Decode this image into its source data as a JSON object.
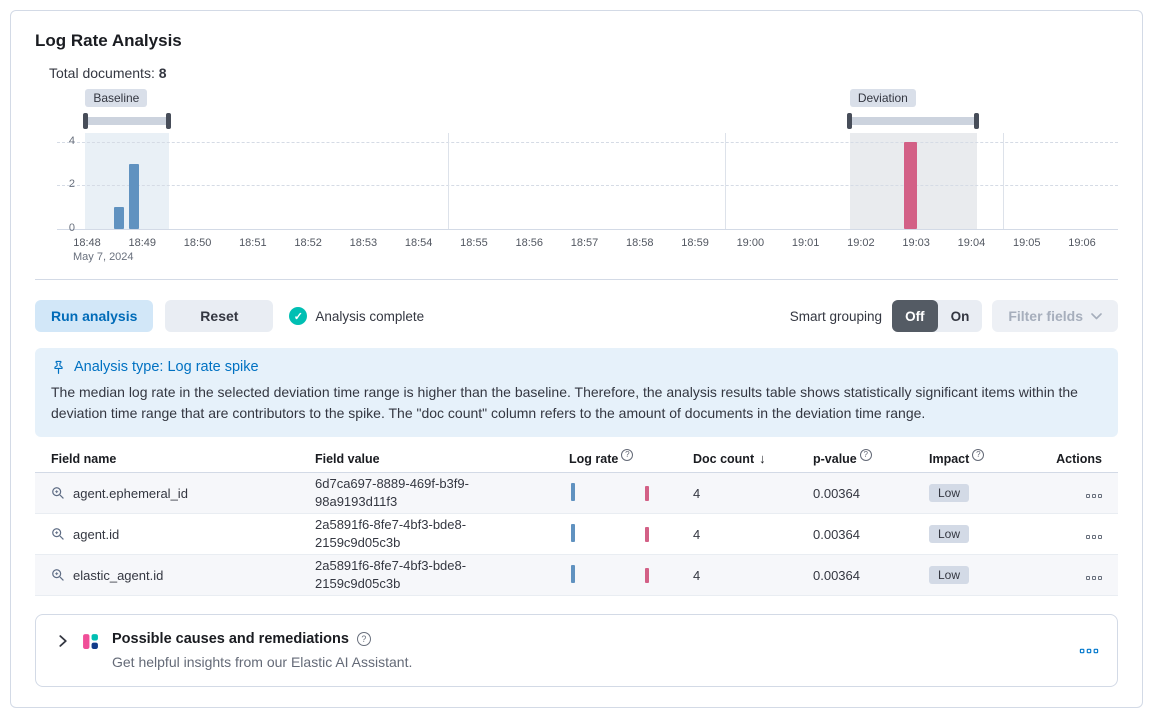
{
  "page": {
    "title": "Log Rate Analysis"
  },
  "total_documents": {
    "label": "Total documents:",
    "value": "8"
  },
  "chart_data": {
    "type": "bar",
    "x_ticks": [
      "18:48",
      "18:49",
      "18:50",
      "18:51",
      "18:52",
      "18:53",
      "18:54",
      "18:55",
      "18:56",
      "18:57",
      "18:58",
      "18:59",
      "19:00",
      "19:01",
      "19:02",
      "19:03",
      "19:04",
      "19:05",
      "19:06"
    ],
    "x_date_label": "May 7, 2024",
    "y_ticks": [
      0,
      2,
      4
    ],
    "y_max": 4.4,
    "bars": [
      {
        "t": 0.58,
        "value": 1,
        "series": "baseline"
      },
      {
        "t": 0.85,
        "value": 3,
        "series": "baseline"
      },
      {
        "t": 14.9,
        "value": 4,
        "series": "deviation"
      }
    ],
    "brushes": [
      {
        "label": "Baseline",
        "from": -0.03,
        "to": 1.48
      },
      {
        "label": "Deviation",
        "from": 13.8,
        "to": 16.1
      }
    ],
    "v_gridlines": [
      6.53,
      11.55,
      16.57
    ],
    "colors": {
      "baseline": "#6092c0",
      "deviation": "#d36086"
    }
  },
  "controls": {
    "run_button": "Run analysis",
    "reset_button": "Reset",
    "status": "Analysis complete",
    "smart_grouping_label": "Smart grouping",
    "toggle_off": "Off",
    "toggle_on": "On",
    "filter_fields": "Filter fields"
  },
  "callout": {
    "title": "Analysis type: Log rate spike",
    "body": "The median log rate in the selected deviation time range is higher than the baseline. Therefore, the analysis results table shows statistically significant items within the deviation time range that are contributors to the spike. The \"doc count\" column refers to the amount of documents in the deviation time range."
  },
  "table": {
    "headers": [
      "Field name",
      "Field value",
      "Log rate",
      "Doc count",
      "p-value",
      "Impact",
      "Actions"
    ],
    "sort_column": "Doc count",
    "sort_direction": "desc",
    "rows": [
      {
        "field_name": "agent.ephemeral_id",
        "field_value": "6d7ca697-8889-469f-b3f9-98a9193d11f3",
        "doc_count": "4",
        "p_value": "0.00364",
        "impact": "Low"
      },
      {
        "field_name": "agent.id",
        "field_value": "2a5891f6-8fe7-4bf3-bde8-2159c9d05c3b",
        "doc_count": "4",
        "p_value": "0.00364",
        "impact": "Low"
      },
      {
        "field_name": "elastic_agent.id",
        "field_value": "2a5891f6-8fe7-4bf3-bde8-2159c9d05c3b",
        "doc_count": "4",
        "p_value": "0.00364",
        "impact": "Low"
      }
    ]
  },
  "assistant_panel": {
    "title": "Possible causes and remediations",
    "subtitle": "Get helpful insights from our Elastic AI Assistant."
  },
  "icons": {
    "question": "?",
    "check": "✓",
    "sort_desc": "↓"
  }
}
